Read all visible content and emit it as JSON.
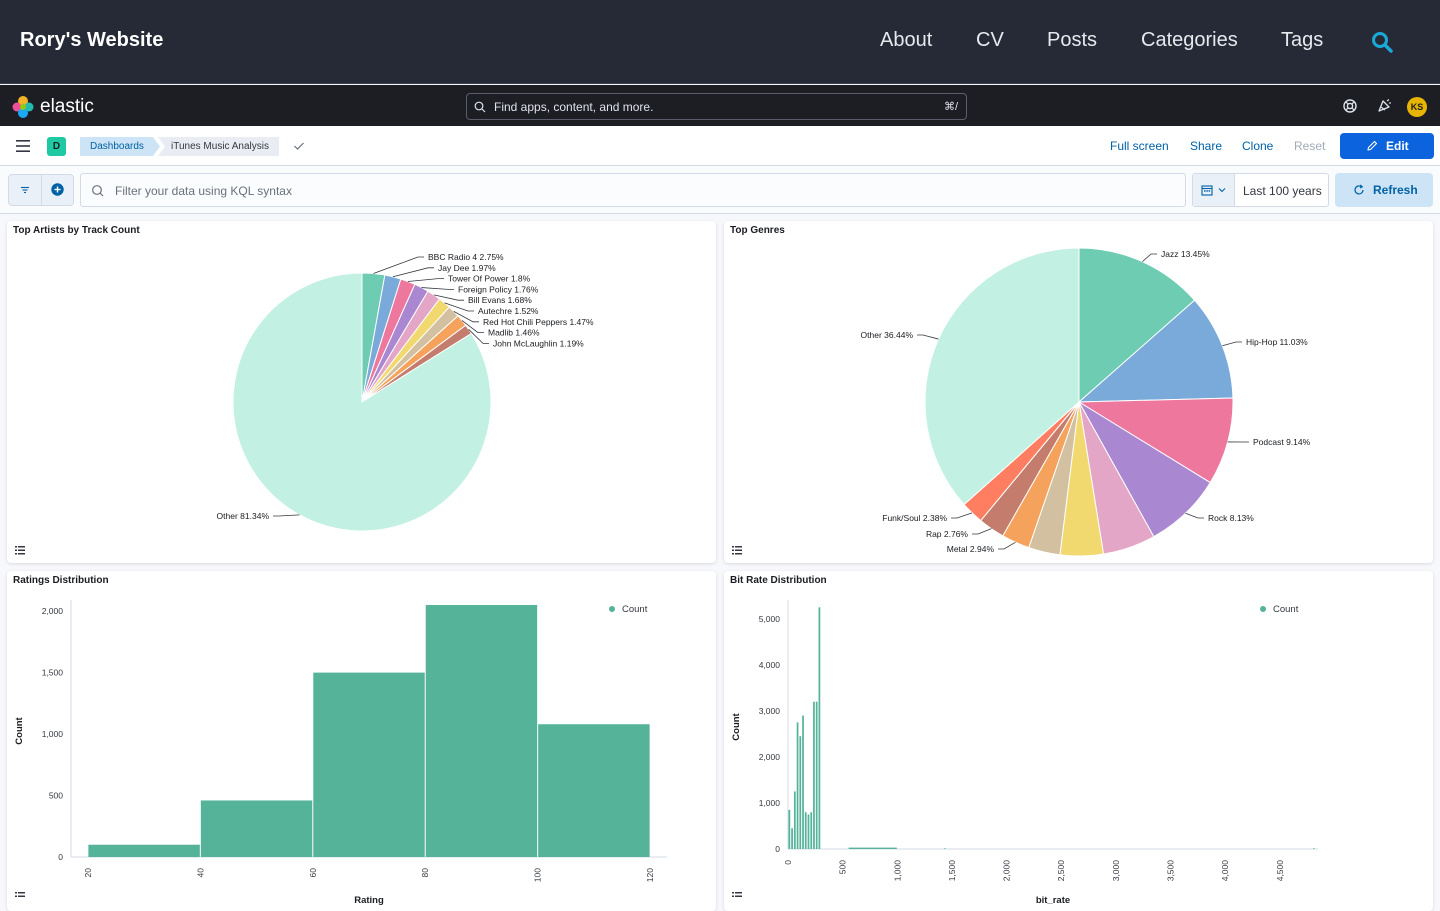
{
  "site": {
    "title": "Rory's Website",
    "nav": [
      "About",
      "CV",
      "Posts",
      "Categories",
      "Tags"
    ]
  },
  "kibana": {
    "brand": "elastic",
    "search_placeholder": "Find apps, content, and more.",
    "search_shortcut": "⌘/",
    "avatar_initials": "KS",
    "space_initial": "D",
    "breadcrumbs": [
      "Dashboards",
      "iTunes Music Analysis"
    ],
    "actions": {
      "full_screen": "Full screen",
      "share": "Share",
      "clone": "Clone",
      "reset": "Reset",
      "edit": "Edit"
    },
    "kql_placeholder": "Filter your data using KQL syntax",
    "time_range": "Last 100 years",
    "refresh": "Refresh",
    "colors": {
      "accent": "#0b64dd",
      "chart_green": "#54b399",
      "header": "#262a36"
    }
  },
  "panels": {
    "artists_title": "Top Artists by Track Count",
    "genres_title": "Top Genres",
    "ratings_title": "Ratings Distribution",
    "bitrate_title": "Bit Rate Distribution"
  },
  "chart_data": [
    {
      "type": "pie",
      "title": "Top Artists by Track Count",
      "slices": [
        {
          "label": "BBC Radio 4",
          "pct_label": "2.75%",
          "value": 2.75
        },
        {
          "label": "Jay Dee",
          "pct_label": "1.97%",
          "value": 1.97
        },
        {
          "label": "Tower Of Power",
          "pct_label": "1.8%",
          "value": 1.8
        },
        {
          "label": "Foreign Policy",
          "pct_label": "1.76%",
          "value": 1.76
        },
        {
          "label": "Bill Evans",
          "pct_label": "1.68%",
          "value": 1.68
        },
        {
          "label": "Autechre",
          "pct_label": "1.52%",
          "value": 1.52
        },
        {
          "label": "Red Hot Chili Peppers",
          "pct_label": "1.47%",
          "value": 1.47
        },
        {
          "label": "Madlib",
          "pct_label": "1.46%",
          "value": 1.46
        },
        {
          "label": "John McLaughlin",
          "pct_label": "1.19%",
          "value": 1.19
        },
        {
          "label": "Other",
          "pct_label": "81.34%",
          "value": 81.34
        }
      ],
      "colors": [
        "#6dccb1",
        "#79aad9",
        "#ee789d",
        "#a987d1",
        "#e4a6c7",
        "#f1d86f",
        "#d2c0a0",
        "#f5a35c",
        "#c47c6c",
        "#ff7e62",
        "#c2f0e2"
      ]
    },
    {
      "type": "pie",
      "title": "Top Genres",
      "slices": [
        {
          "label": "Jazz",
          "pct_label": "13.45%",
          "value": 13.45
        },
        {
          "label": "Hip-Hop",
          "pct_label": "11.03%",
          "value": 11.03
        },
        {
          "label": "Podcast",
          "pct_label": "9.14%",
          "value": 9.14
        },
        {
          "label": "Rock",
          "pct_label": "8.13%",
          "value": 8.13
        },
        {
          "label": "",
          "pct_label": "",
          "value": 5.5
        },
        {
          "label": "",
          "pct_label": "",
          "value": 4.5
        },
        {
          "label": "",
          "pct_label": "",
          "value": 3.3
        },
        {
          "label": "Metal",
          "pct_label": "2.94%",
          "value": 2.94
        },
        {
          "label": "Rap",
          "pct_label": "2.76%",
          "value": 2.76
        },
        {
          "label": "Funk/Soul",
          "pct_label": "2.38%",
          "value": 2.38
        },
        {
          "label": "Other",
          "pct_label": "36.44%",
          "value": 36.44
        }
      ],
      "colors": [
        "#6dccb1",
        "#79aad9",
        "#ee789d",
        "#a987d1",
        "#e4a6c7",
        "#f1d86f",
        "#d2c0a0",
        "#f5a35c",
        "#c47c6c",
        "#ff7e62",
        "#c2f0e2"
      ]
    },
    {
      "type": "bar",
      "title": "Ratings Distribution",
      "xlabel": "Rating",
      "ylabel": "Count",
      "legend": "Count",
      "legend_position": "top-right",
      "x_ticks": [
        20,
        40,
        60,
        80,
        100,
        120
      ],
      "y_ticks": [
        0,
        500,
        1000,
        1500,
        2000
      ],
      "y_tick_labels": [
        "0",
        "500",
        "1,000",
        "1,500",
        "2,000"
      ],
      "ylim": [
        0,
        2050
      ],
      "bins": [
        {
          "x0": 20,
          "x1": 40,
          "value": 100
        },
        {
          "x0": 40,
          "x1": 60,
          "value": 460
        },
        {
          "x0": 60,
          "x1": 80,
          "value": 1500
        },
        {
          "x0": 80,
          "x1": 100,
          "value": 2050
        },
        {
          "x0": 100,
          "x1": 120,
          "value": 1080
        }
      ]
    },
    {
      "type": "bar",
      "title": "Bit Rate Distribution",
      "xlabel": "bit_rate",
      "ylabel": "Count",
      "legend": "Count",
      "legend_position": "top-right",
      "x_ticks": [
        0,
        500,
        1000,
        1500,
        2000,
        2500,
        3000,
        3500,
        4000,
        4500
      ],
      "x_tick_labels": [
        "0",
        "500",
        "1,000",
        "1,500",
        "2,000",
        "2,500",
        "3,000",
        "3,500",
        "4,000",
        "4,500"
      ],
      "y_ticks": [
        0,
        1000,
        2000,
        3000,
        4000,
        5000
      ],
      "y_tick_labels": [
        "0",
        "1,000",
        "2,000",
        "3,000",
        "4,000",
        "5,000"
      ],
      "ylim": [
        0,
        5300
      ],
      "bins": [
        {
          "x0": 0,
          "x1": 25,
          "value": 850
        },
        {
          "x0": 25,
          "x1": 50,
          "value": 450
        },
        {
          "x0": 50,
          "x1": 75,
          "value": 1250
        },
        {
          "x0": 75,
          "x1": 100,
          "value": 2750
        },
        {
          "x0": 100,
          "x1": 125,
          "value": 2450
        },
        {
          "x0": 125,
          "x1": 150,
          "value": 2900
        },
        {
          "x0": 150,
          "x1": 175,
          "value": 800
        },
        {
          "x0": 175,
          "x1": 200,
          "value": 750
        },
        {
          "x0": 200,
          "x1": 225,
          "value": 800
        },
        {
          "x0": 225,
          "x1": 250,
          "value": 3200
        },
        {
          "x0": 250,
          "x1": 275,
          "value": 3200
        },
        {
          "x0": 275,
          "x1": 300,
          "value": 5250
        },
        {
          "x0": 550,
          "x1": 1000,
          "value": 30
        },
        {
          "x0": 1425,
          "x1": 1450,
          "value": 15
        },
        {
          "x0": 4800,
          "x1": 4825,
          "value": 15
        }
      ]
    }
  ]
}
